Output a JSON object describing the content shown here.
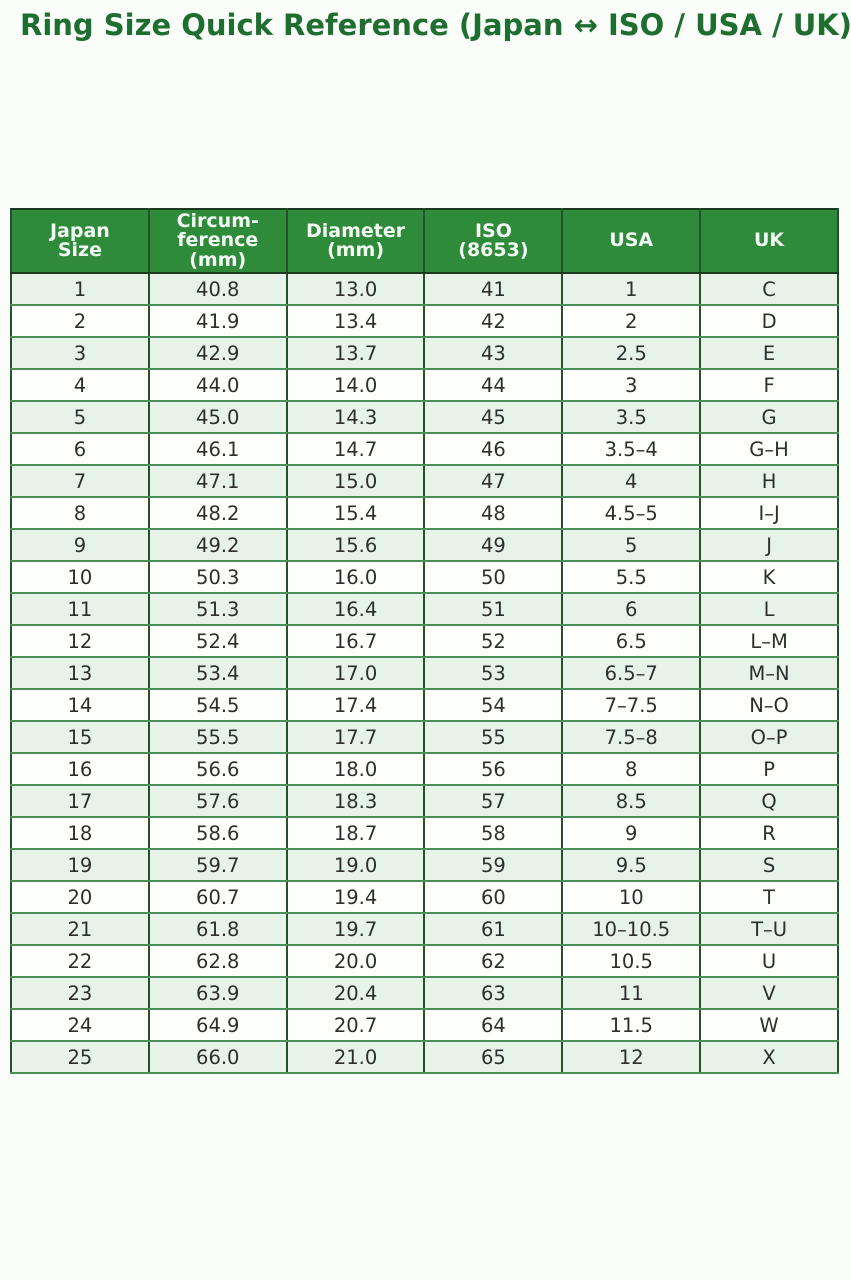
{
  "title": "Ring Size Quick Reference (Japan ↔ ISO / USA / UK)",
  "colors": {
    "title_green": "#1e6f2f",
    "header_bg": "#2e8b3a",
    "header_text": "#f4faf4",
    "row_stripe_green": "#e7f3e8",
    "row_white": "#fdfffd",
    "grid_green": "#4a8f53",
    "grid_dark": "#24512c"
  },
  "chart_data": {
    "type": "table",
    "title": "Ring Size Quick Reference (Japan ↔ ISO / USA / UK)",
    "columns": [
      "Japan\nSize",
      "Circum-\nference\n(mm)",
      "Diameter\n(mm)",
      "ISO\n(8653)",
      "USA",
      "UK"
    ],
    "rows": [
      [
        "1",
        "40.8",
        "13.0",
        "41",
        "1",
        "C"
      ],
      [
        "2",
        "41.9",
        "13.4",
        "42",
        "2",
        "D"
      ],
      [
        "3",
        "42.9",
        "13.7",
        "43",
        "2.5",
        "E"
      ],
      [
        "4",
        "44.0",
        "14.0",
        "44",
        "3",
        "F"
      ],
      [
        "5",
        "45.0",
        "14.3",
        "45",
        "3.5",
        "G"
      ],
      [
        "6",
        "46.1",
        "14.7",
        "46",
        "3.5–4",
        "G–H"
      ],
      [
        "7",
        "47.1",
        "15.0",
        "47",
        "4",
        "H"
      ],
      [
        "8",
        "48.2",
        "15.4",
        "48",
        "4.5–5",
        "I–J"
      ],
      [
        "9",
        "49.2",
        "15.6",
        "49",
        "5",
        "J"
      ],
      [
        "10",
        "50.3",
        "16.0",
        "50",
        "5.5",
        "K"
      ],
      [
        "11",
        "51.3",
        "16.4",
        "51",
        "6",
        "L"
      ],
      [
        "12",
        "52.4",
        "16.7",
        "52",
        "6.5",
        "L–M"
      ],
      [
        "13",
        "53.4",
        "17.0",
        "53",
        "6.5–7",
        "M–N"
      ],
      [
        "14",
        "54.5",
        "17.4",
        "54",
        "7–7.5",
        "N–O"
      ],
      [
        "15",
        "55.5",
        "17.7",
        "55",
        "7.5–8",
        "O–P"
      ],
      [
        "16",
        "56.6",
        "18.0",
        "56",
        "8",
        "P"
      ],
      [
        "17",
        "57.6",
        "18.3",
        "57",
        "8.5",
        "Q"
      ],
      [
        "18",
        "58.6",
        "18.7",
        "58",
        "9",
        "R"
      ],
      [
        "19",
        "59.7",
        "19.0",
        "59",
        "9.5",
        "S"
      ],
      [
        "20",
        "60.7",
        "19.4",
        "60",
        "10",
        "T"
      ],
      [
        "21",
        "61.8",
        "19.7",
        "61",
        "10–10.5",
        "T–U"
      ],
      [
        "22",
        "62.8",
        "20.0",
        "62",
        "10.5",
        "U"
      ],
      [
        "23",
        "63.9",
        "20.4",
        "63",
        "11",
        "V"
      ],
      [
        "24",
        "64.9",
        "20.7",
        "64",
        "11.5",
        "W"
      ],
      [
        "25",
        "66.0",
        "21.0",
        "65",
        "12",
        "X"
      ]
    ],
    "layout": {
      "header_style": "green banner, white bold text",
      "row_striping": "odd rows pale green, even rows white",
      "grid": true,
      "column_alignment": "center"
    }
  }
}
